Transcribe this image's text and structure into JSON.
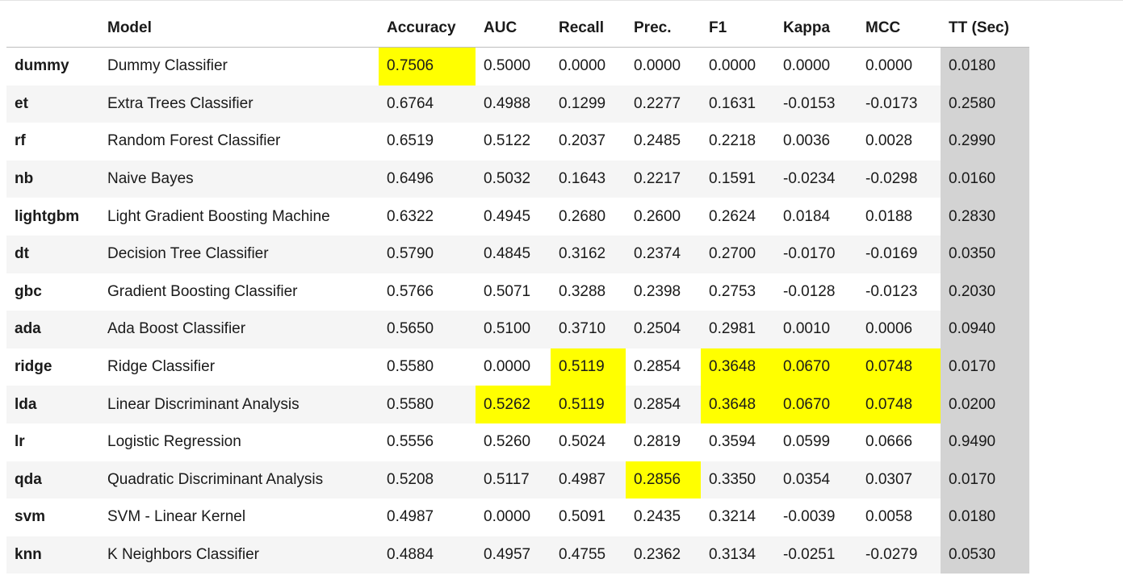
{
  "colors": {
    "highlight": "#ffff00",
    "tt_column": "#d3d3d3",
    "stripe": "#f5f5f5"
  },
  "columns": [
    "",
    "Model",
    "Accuracy",
    "AUC",
    "Recall",
    "Prec.",
    "F1",
    "Kappa",
    "MCC",
    "TT (Sec)"
  ],
  "rows": [
    {
      "id": "dummy",
      "model": "Dummy Classifier",
      "accuracy": "0.7506",
      "auc": "0.5000",
      "recall": "0.0000",
      "prec": "0.0000",
      "f1": "0.0000",
      "kappa": "0.0000",
      "mcc": "0.0000",
      "tt": "0.0180",
      "highlighted": [
        "accuracy"
      ]
    },
    {
      "id": "et",
      "model": "Extra Trees Classifier",
      "accuracy": "0.6764",
      "auc": "0.4988",
      "recall": "0.1299",
      "prec": "0.2277",
      "f1": "0.1631",
      "kappa": "-0.0153",
      "mcc": "-0.0173",
      "tt": "0.2580",
      "highlighted": []
    },
    {
      "id": "rf",
      "model": "Random Forest Classifier",
      "accuracy": "0.6519",
      "auc": "0.5122",
      "recall": "0.2037",
      "prec": "0.2485",
      "f1": "0.2218",
      "kappa": "0.0036",
      "mcc": "0.0028",
      "tt": "0.2990",
      "highlighted": []
    },
    {
      "id": "nb",
      "model": "Naive Bayes",
      "accuracy": "0.6496",
      "auc": "0.5032",
      "recall": "0.1643",
      "prec": "0.2217",
      "f1": "0.1591",
      "kappa": "-0.0234",
      "mcc": "-0.0298",
      "tt": "0.0160",
      "highlighted": []
    },
    {
      "id": "lightgbm",
      "model": "Light Gradient Boosting Machine",
      "accuracy": "0.6322",
      "auc": "0.4945",
      "recall": "0.2680",
      "prec": "0.2600",
      "f1": "0.2624",
      "kappa": "0.0184",
      "mcc": "0.0188",
      "tt": "0.2830",
      "highlighted": []
    },
    {
      "id": "dt",
      "model": "Decision Tree Classifier",
      "accuracy": "0.5790",
      "auc": "0.4845",
      "recall": "0.3162",
      "prec": "0.2374",
      "f1": "0.2700",
      "kappa": "-0.0170",
      "mcc": "-0.0169",
      "tt": "0.0350",
      "highlighted": []
    },
    {
      "id": "gbc",
      "model": "Gradient Boosting Classifier",
      "accuracy": "0.5766",
      "auc": "0.5071",
      "recall": "0.3288",
      "prec": "0.2398",
      "f1": "0.2753",
      "kappa": "-0.0128",
      "mcc": "-0.0123",
      "tt": "0.2030",
      "highlighted": []
    },
    {
      "id": "ada",
      "model": "Ada Boost Classifier",
      "accuracy": "0.5650",
      "auc": "0.5100",
      "recall": "0.3710",
      "prec": "0.2504",
      "f1": "0.2981",
      "kappa": "0.0010",
      "mcc": "0.0006",
      "tt": "0.0940",
      "highlighted": []
    },
    {
      "id": "ridge",
      "model": "Ridge Classifier",
      "accuracy": "0.5580",
      "auc": "0.0000",
      "recall": "0.5119",
      "prec": "0.2854",
      "f1": "0.3648",
      "kappa": "0.0670",
      "mcc": "0.0748",
      "tt": "0.0170",
      "highlighted": [
        "recall",
        "f1",
        "kappa",
        "mcc"
      ]
    },
    {
      "id": "lda",
      "model": "Linear Discriminant Analysis",
      "accuracy": "0.5580",
      "auc": "0.5262",
      "recall": "0.5119",
      "prec": "0.2854",
      "f1": "0.3648",
      "kappa": "0.0670",
      "mcc": "0.0748",
      "tt": "0.0200",
      "highlighted": [
        "auc",
        "recall",
        "f1",
        "kappa",
        "mcc"
      ]
    },
    {
      "id": "lr",
      "model": "Logistic Regression",
      "accuracy": "0.5556",
      "auc": "0.5260",
      "recall": "0.5024",
      "prec": "0.2819",
      "f1": "0.3594",
      "kappa": "0.0599",
      "mcc": "0.0666",
      "tt": "0.9490",
      "highlighted": []
    },
    {
      "id": "qda",
      "model": "Quadratic Discriminant Analysis",
      "accuracy": "0.5208",
      "auc": "0.5117",
      "recall": "0.4987",
      "prec": "0.2856",
      "f1": "0.3350",
      "kappa": "0.0354",
      "mcc": "0.0307",
      "tt": "0.0170",
      "highlighted": [
        "prec"
      ]
    },
    {
      "id": "svm",
      "model": "SVM - Linear Kernel",
      "accuracy": "0.4987",
      "auc": "0.0000",
      "recall": "0.5091",
      "prec": "0.2435",
      "f1": "0.3214",
      "kappa": "-0.0039",
      "mcc": "0.0058",
      "tt": "0.0180",
      "highlighted": []
    },
    {
      "id": "knn",
      "model": "K Neighbors Classifier",
      "accuracy": "0.4884",
      "auc": "0.4957",
      "recall": "0.4755",
      "prec": "0.2362",
      "f1": "0.3134",
      "kappa": "-0.0251",
      "mcc": "-0.0279",
      "tt": "0.0530",
      "highlighted": []
    }
  ]
}
